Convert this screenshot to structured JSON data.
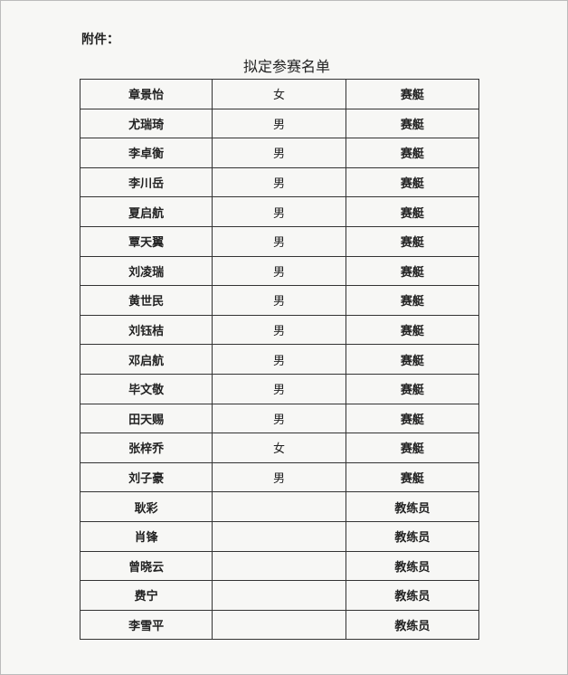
{
  "attachment_label": "附件：",
  "title": "拟定参赛名单",
  "rows": [
    {
      "name": "章景怡",
      "gender": "女",
      "role": "赛艇"
    },
    {
      "name": "尤瑞琦",
      "gender": "男",
      "role": "赛艇"
    },
    {
      "name": "李卓衡",
      "gender": "男",
      "role": "赛艇"
    },
    {
      "name": "李川岳",
      "gender": "男",
      "role": "赛艇"
    },
    {
      "name": "夏启航",
      "gender": "男",
      "role": "赛艇"
    },
    {
      "name": "覃天翼",
      "gender": "男",
      "role": "赛艇"
    },
    {
      "name": "刘凌瑞",
      "gender": "男",
      "role": "赛艇"
    },
    {
      "name": "黄世民",
      "gender": "男",
      "role": "赛艇"
    },
    {
      "name": "刘钰桔",
      "gender": "男",
      "role": "赛艇"
    },
    {
      "name": "邓启航",
      "gender": "男",
      "role": "赛艇"
    },
    {
      "name": "毕文敬",
      "gender": "男",
      "role": "赛艇"
    },
    {
      "name": "田天赐",
      "gender": "男",
      "role": "赛艇"
    },
    {
      "name": "张梓乔",
      "gender": "女",
      "role": "赛艇"
    },
    {
      "name": "刘子豪",
      "gender": "男",
      "role": "赛艇"
    },
    {
      "name": "耿彩",
      "gender": "",
      "role": "教练员"
    },
    {
      "name": "肖锋",
      "gender": "",
      "role": "教练员"
    },
    {
      "name": "曾晓云",
      "gender": "",
      "role": "教练员"
    },
    {
      "name": "费宁",
      "gender": "",
      "role": "教练员"
    },
    {
      "name": "李雪平",
      "gender": "",
      "role": "教练员"
    }
  ]
}
